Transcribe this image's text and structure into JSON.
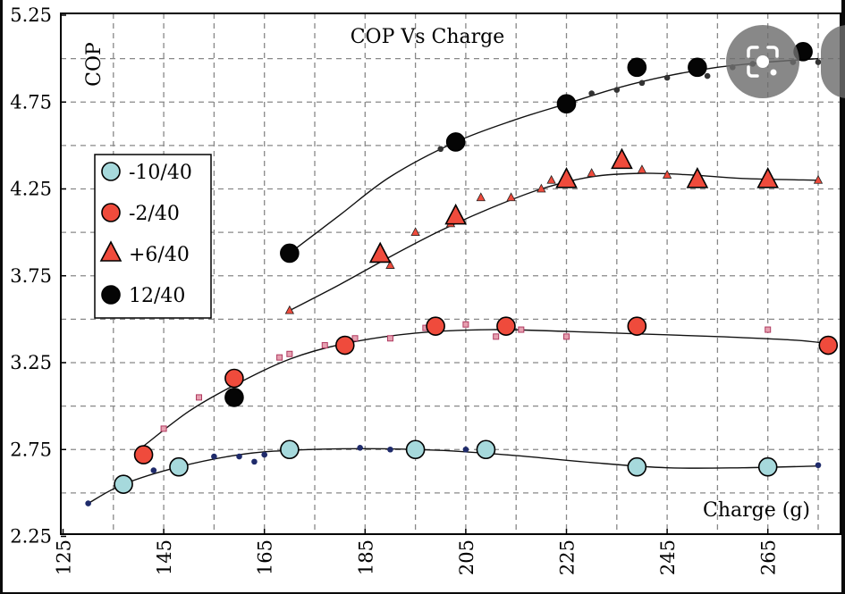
{
  "chart_data": {
    "type": "scatter",
    "title": "COP Vs Charge",
    "xlabel": "Charge (g)",
    "ylabel": "COP",
    "xlim": [
      125,
      279
    ],
    "ylim": [
      2.25,
      5.25
    ],
    "xticks": [
      "125",
      "145",
      "165",
      "185",
      "205",
      "225",
      "245",
      "265"
    ],
    "yticks": [
      "2.25",
      "2.75",
      "3.25",
      "3.75",
      "4.25",
      "4.75",
      "5.25"
    ],
    "grid": true,
    "legend_position": "left",
    "series": [
      {
        "name": "-10/40",
        "marker": "circle",
        "color": "#a6d9dc",
        "dot_color": "#1f2b6b",
        "x": [
          137,
          148,
          170,
          195,
          209,
          239,
          265
        ],
        "y": [
          2.55,
          2.65,
          2.75,
          2.75,
          2.75,
          2.65,
          2.65
        ],
        "small_x": [
          130,
          143,
          155,
          160,
          163,
          165,
          184,
          190,
          205,
          240,
          275
        ],
        "small_y": [
          2.44,
          2.63,
          2.71,
          2.71,
          2.68,
          2.72,
          2.76,
          2.75,
          2.75,
          2.66,
          2.66
        ],
        "fit_x": [
          130,
          137,
          148,
          160,
          170,
          185,
          200,
          215,
          230,
          245,
          260,
          275
        ],
        "fit_y": [
          2.44,
          2.55,
          2.65,
          2.72,
          2.745,
          2.755,
          2.745,
          2.715,
          2.675,
          2.645,
          2.645,
          2.655
        ]
      },
      {
        "name": "-2/40",
        "marker": "circle",
        "color": "#ef4b3c",
        "dot_color": "#b03a60",
        "x": [
          141,
          159,
          181,
          199,
          213,
          239,
          277
        ],
        "y": [
          2.72,
          3.16,
          3.35,
          3.46,
          3.46,
          3.46,
          3.35
        ],
        "small_x": [
          145,
          152,
          168,
          170,
          177,
          183,
          190,
          197,
          205,
          211,
          216,
          225,
          265
        ],
        "small_y": [
          2.87,
          3.05,
          3.28,
          3.3,
          3.35,
          3.39,
          3.39,
          3.45,
          3.47,
          3.4,
          3.44,
          3.4,
          3.44
        ],
        "fit_x": [
          141,
          150,
          159,
          170,
          181,
          195,
          210,
          225,
          240,
          255,
          270,
          277
        ],
        "fit_y": [
          2.77,
          2.97,
          3.12,
          3.27,
          3.36,
          3.42,
          3.44,
          3.43,
          3.415,
          3.4,
          3.38,
          3.36
        ]
      },
      {
        "name": "+6/40",
        "marker": "triangle",
        "color": "#ef4b3c",
        "dot_color": "#b03a60",
        "x": [
          188,
          203,
          225,
          236,
          251,
          265
        ],
        "y": [
          3.87,
          4.09,
          4.3,
          4.41,
          4.3,
          4.3
        ],
        "small_x": [
          170,
          190,
          195,
          202,
          208,
          214,
          220,
          222,
          230,
          240,
          245,
          275
        ],
        "small_y": [
          3.55,
          3.81,
          4.0,
          4.05,
          4.2,
          4.2,
          4.25,
          4.3,
          4.34,
          4.36,
          4.33,
          4.3
        ],
        "fit_x": [
          170,
          180,
          190,
          200,
          210,
          220,
          230,
          240,
          250,
          260,
          275
        ],
        "fit_y": [
          3.55,
          3.7,
          3.86,
          4.01,
          4.14,
          4.25,
          4.32,
          4.34,
          4.33,
          4.31,
          4.3
        ]
      },
      {
        "name": "12/40",
        "marker": "circle",
        "color": "#050505",
        "dot_color": "#333333",
        "x": [
          170,
          203,
          225,
          239,
          251,
          272,
          159
        ],
        "y": [
          3.88,
          4.52,
          4.74,
          4.95,
          4.95,
          5.04,
          3.05
        ],
        "small_x": [
          200,
          230,
          235,
          240,
          245,
          253,
          258,
          262,
          270,
          275
        ],
        "small_y": [
          4.48,
          4.8,
          4.82,
          4.86,
          4.89,
          4.9,
          4.95,
          4.97,
          4.98,
          4.98
        ],
        "fit_x": [
          170,
          180,
          190,
          203,
          215,
          225,
          235,
          245,
          255,
          265,
          275
        ],
        "fit_y": [
          3.88,
          4.1,
          4.32,
          4.52,
          4.65,
          4.74,
          4.83,
          4.9,
          4.95,
          4.98,
          5.0
        ]
      }
    ]
  },
  "ui": {
    "lens_button_icon": "google-lens-icon"
  }
}
